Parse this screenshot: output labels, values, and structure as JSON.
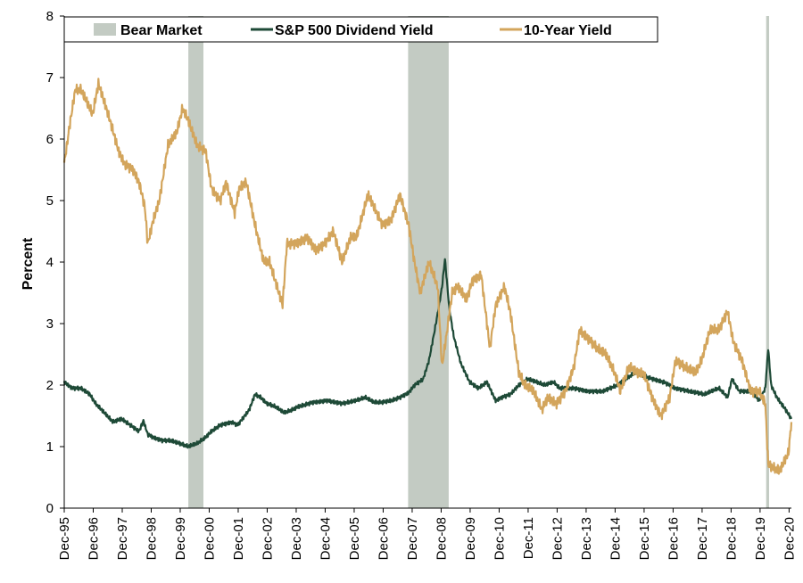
{
  "chart_data": {
    "type": "line",
    "ylabel": "Percent",
    "xlabel": "",
    "ylim": [
      0,
      8
    ],
    "yticks": [
      "0",
      "1",
      "2",
      "3",
      "4",
      "5",
      "6",
      "7",
      "8"
    ],
    "x_tick_labels": [
      "Dec-95",
      "Dec-96",
      "Dec-97",
      "Dec-98",
      "Dec-99",
      "Dec-00",
      "Dec-01",
      "Dec-02",
      "Dec-03",
      "Dec-04",
      "Dec-05",
      "Dec-06",
      "Dec-07",
      "Dec-08",
      "Dec-09",
      "Dec-10",
      "Dec-11",
      "Dec-12",
      "Dec-13",
      "Dec-14",
      "Dec-15",
      "Dec-16",
      "Dec-17",
      "Dec-18",
      "Dec-19",
      "Dec-20"
    ],
    "xlim": [
      1995.92,
      2021.0
    ],
    "legend": {
      "placement": "top",
      "entries": [
        "Bear Market",
        "S&P 500 Dividend Yield",
        "10-Year Yield"
      ]
    },
    "colors": {
      "bear": "#c3cbc3",
      "dividend": "#1e4a37",
      "ten_year": "#d3a55c"
    },
    "bear_markets": [
      {
        "name": "Bear Market",
        "start": 2000.2,
        "end": 2000.72
      },
      {
        "name": "Bear Market",
        "start": 2007.78,
        "end": 2009.18
      },
      {
        "name": "Bear Market",
        "start": 2020.13,
        "end": 2020.23
      }
    ],
    "series": [
      {
        "name": "S&P 500 Dividend Yield",
        "x": [
          1995.92,
          1996.2,
          1996.5,
          1996.8,
          1997.0,
          1997.3,
          1997.6,
          1997.9,
          1998.2,
          1998.5,
          1998.65,
          1998.8,
          1999.0,
          1999.3,
          1999.6,
          1999.9,
          2000.2,
          2000.5,
          2000.8,
          2001.0,
          2001.3,
          2001.7,
          2001.9,
          2002.3,
          2002.5,
          2002.7,
          2002.9,
          2003.2,
          2003.5,
          2003.8,
          2004.0,
          2004.5,
          2005.0,
          2005.5,
          2006.0,
          2006.3,
          2006.6,
          2006.9,
          2007.2,
          2007.5,
          2007.8,
          2008.0,
          2008.3,
          2008.5,
          2008.7,
          2008.85,
          2008.95,
          2009.05,
          2009.2,
          2009.35,
          2009.6,
          2009.9,
          2010.2,
          2010.5,
          2010.8,
          2011.0,
          2011.3,
          2011.6,
          2011.9,
          2012.2,
          2012.5,
          2012.8,
          2013.0,
          2013.5,
          2014.0,
          2014.5,
          2015.0,
          2015.3,
          2015.6,
          2015.9,
          2016.2,
          2016.6,
          2017.0,
          2017.5,
          2018.0,
          2018.5,
          2018.8,
          2018.95,
          2019.2,
          2019.6,
          2019.9,
          2020.1,
          2020.2,
          2020.3,
          2020.5,
          2020.8,
          2021.0
        ],
        "values": [
          2.05,
          1.95,
          1.95,
          1.85,
          1.7,
          1.55,
          1.4,
          1.45,
          1.35,
          1.25,
          1.42,
          1.2,
          1.15,
          1.1,
          1.1,
          1.05,
          1.0,
          1.05,
          1.15,
          1.25,
          1.35,
          1.4,
          1.35,
          1.6,
          1.85,
          1.8,
          1.7,
          1.65,
          1.55,
          1.6,
          1.65,
          1.72,
          1.75,
          1.7,
          1.75,
          1.8,
          1.72,
          1.72,
          1.75,
          1.8,
          1.88,
          2.0,
          2.1,
          2.4,
          2.9,
          3.3,
          3.6,
          4.05,
          3.25,
          2.8,
          2.35,
          2.05,
          1.95,
          2.05,
          1.75,
          1.8,
          1.85,
          2.0,
          2.1,
          2.05,
          2.0,
          2.05,
          1.95,
          1.95,
          1.9,
          1.9,
          2.0,
          2.1,
          2.2,
          2.15,
          2.1,
          2.05,
          1.95,
          1.9,
          1.85,
          1.95,
          1.8,
          2.1,
          1.9,
          1.9,
          1.75,
          1.95,
          2.6,
          2.0,
          1.8,
          1.6,
          1.45
        ]
      },
      {
        "name": "10-Year Yield",
        "x": [
          1995.92,
          1996.1,
          1996.3,
          1996.5,
          1996.7,
          1996.9,
          1997.1,
          1997.3,
          1997.5,
          1997.8,
          1998.0,
          1998.3,
          1998.5,
          1998.7,
          1998.8,
          1999.0,
          1999.2,
          1999.5,
          1999.8,
          2000.0,
          2000.2,
          2000.5,
          2000.8,
          2001.0,
          2001.3,
          2001.5,
          2001.8,
          2001.95,
          2002.2,
          2002.5,
          2002.8,
          2003.0,
          2003.45,
          2003.6,
          2003.9,
          2004.3,
          2004.6,
          2004.9,
          2005.2,
          2005.5,
          2005.8,
          2006.0,
          2006.4,
          2006.7,
          2006.9,
          2007.2,
          2007.5,
          2007.8,
          2008.0,
          2008.2,
          2008.5,
          2008.8,
          2008.95,
          2009.1,
          2009.3,
          2009.5,
          2009.8,
          2010.0,
          2010.3,
          2010.6,
          2010.8,
          2011.1,
          2011.3,
          2011.6,
          2011.8,
          2012.1,
          2012.4,
          2012.6,
          2012.9,
          2013.2,
          2013.5,
          2013.7,
          2013.9,
          2014.3,
          2014.6,
          2014.9,
          2015.1,
          2015.4,
          2015.7,
          2015.9,
          2016.2,
          2016.5,
          2016.8,
          2017.0,
          2017.3,
          2017.7,
          2017.9,
          2018.2,
          2018.5,
          2018.8,
          2019.0,
          2019.3,
          2019.6,
          2019.9,
          2020.1,
          2020.2,
          2020.4,
          2020.6,
          2020.9,
          2021.0
        ],
        "values": [
          5.6,
          6.2,
          6.8,
          6.8,
          6.6,
          6.4,
          6.9,
          6.6,
          6.3,
          5.8,
          5.6,
          5.5,
          5.3,
          4.9,
          4.3,
          4.7,
          5.0,
          5.9,
          6.1,
          6.5,
          6.3,
          5.9,
          5.8,
          5.2,
          5.0,
          5.3,
          4.8,
          5.2,
          5.3,
          4.6,
          4.0,
          4.0,
          3.3,
          4.3,
          4.3,
          4.4,
          4.2,
          4.3,
          4.5,
          4.0,
          4.4,
          4.4,
          5.1,
          4.8,
          4.6,
          4.7,
          5.1,
          4.6,
          4.0,
          3.5,
          4.0,
          3.6,
          2.3,
          2.8,
          3.5,
          3.6,
          3.4,
          3.7,
          3.8,
          2.6,
          3.3,
          3.6,
          3.2,
          2.2,
          2.0,
          1.9,
          1.6,
          1.8,
          1.7,
          1.9,
          2.3,
          2.9,
          2.8,
          2.6,
          2.5,
          2.2,
          1.9,
          2.3,
          2.2,
          2.2,
          1.8,
          1.5,
          1.8,
          2.4,
          2.3,
          2.2,
          2.4,
          2.9,
          2.9,
          3.2,
          2.7,
          2.4,
          1.9,
          1.9,
          1.7,
          0.7,
          0.65,
          0.6,
          0.9,
          1.4
        ]
      }
    ]
  }
}
